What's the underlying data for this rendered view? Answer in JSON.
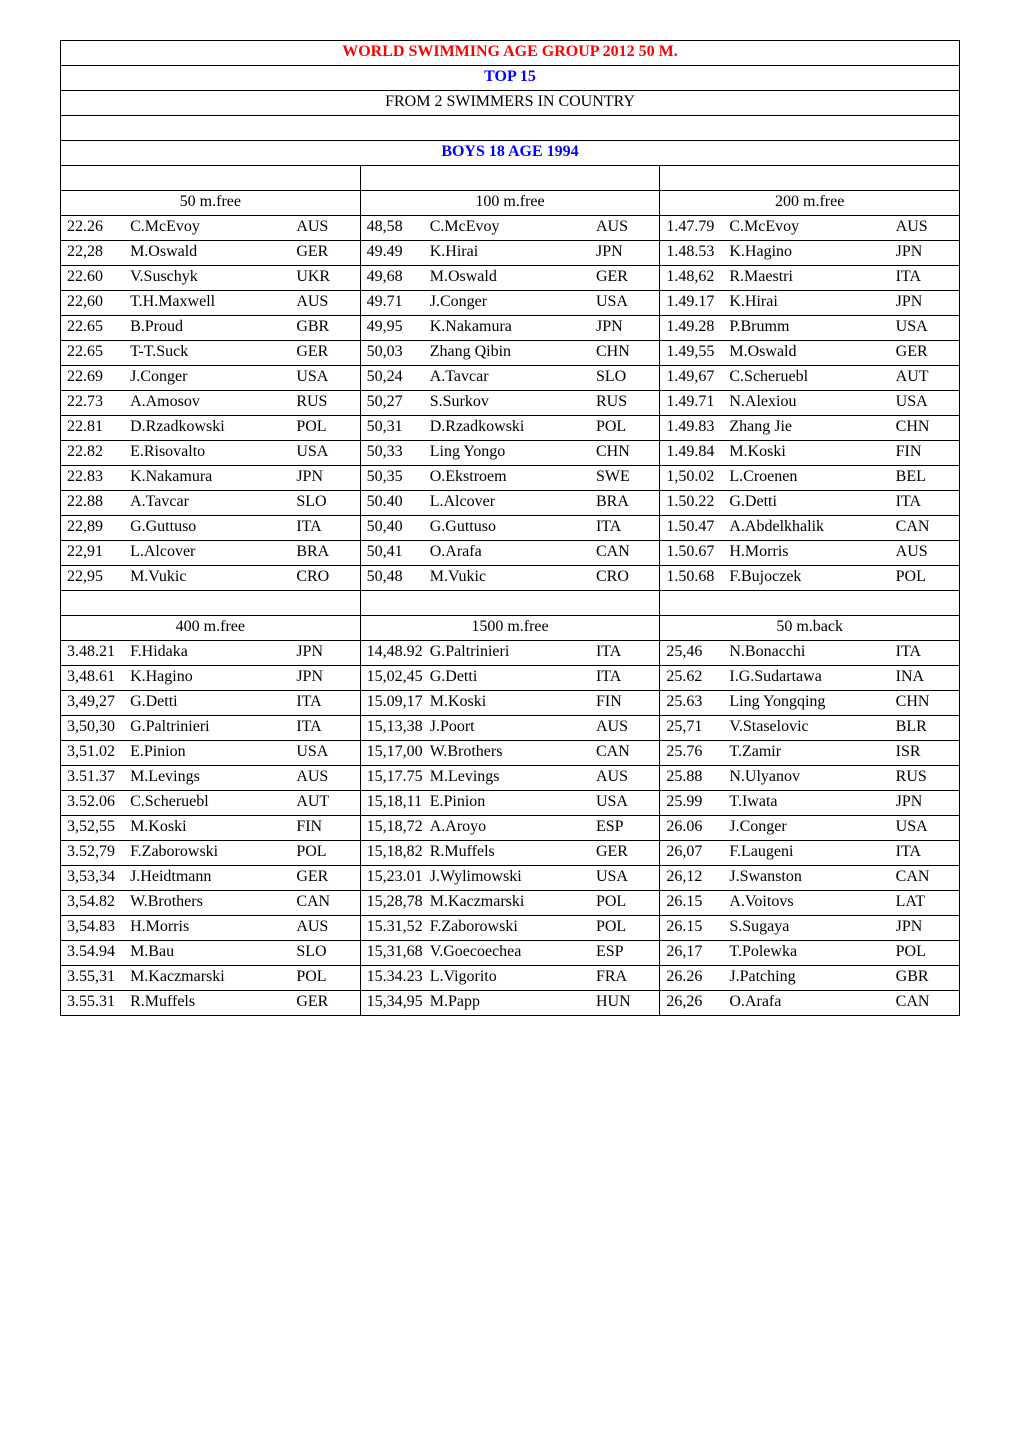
{
  "header": {
    "title": "WORLD SWIMMING AGE GROUP 2012 50 M.",
    "subtitle": "TOP 15",
    "note": "FROM 2 SWIMMERS IN COUNTRY",
    "section": "BOYS 18 AGE 1994"
  },
  "colors": {
    "red": "#ff0000",
    "blue": "#0000ff",
    "black": "#000000",
    "border": "#000000",
    "background": "#ffffff"
  },
  "typography": {
    "family": "Times New Roman",
    "base_size_pt": 12,
    "header_weight": "bold"
  },
  "events": [
    {
      "name": "50 m.free",
      "rows": [
        [
          "22.26",
          "C.McEvoy",
          "AUS"
        ],
        [
          "22,28",
          "M.Oswald",
          "GER"
        ],
        [
          "22.60",
          "V.Suschyk",
          "UKR"
        ],
        [
          "22,60",
          "T.H.Maxwell",
          "AUS"
        ],
        [
          "22.65",
          "B.Proud",
          "GBR"
        ],
        [
          "22.65",
          "T-T.Suck",
          "GER"
        ],
        [
          "22.69",
          "J.Conger",
          "USA"
        ],
        [
          "22.73",
          "A.Amosov",
          "RUS"
        ],
        [
          "22.81",
          "D.Rzadkowski",
          "POL"
        ],
        [
          "22.82",
          "E.Risovalto",
          "USA"
        ],
        [
          "22.83",
          "K.Nakamura",
          "JPN"
        ],
        [
          "22.88",
          "A.Tavcar",
          "SLO"
        ],
        [
          "22,89",
          "G.Guttuso",
          "ITA"
        ],
        [
          "22,91",
          "L.Alcover",
          "BRA"
        ],
        [
          "22,95",
          "M.Vukic",
          "CRO"
        ]
      ]
    },
    {
      "name": "100 m.free",
      "rows": [
        [
          "48,58",
          "C.McEvoy",
          "AUS"
        ],
        [
          "49.49",
          "K.Hirai",
          "JPN"
        ],
        [
          "49,68",
          "M.Oswald",
          "GER"
        ],
        [
          "49.71",
          "J.Conger",
          "USA"
        ],
        [
          "49,95",
          "K.Nakamura",
          "JPN"
        ],
        [
          "50,03",
          "Zhang Qibin",
          "CHN"
        ],
        [
          "50,24",
          "A.Tavcar",
          "SLO"
        ],
        [
          "50,27",
          "S.Surkov",
          "RUS"
        ],
        [
          "50,31",
          "D.Rzadkowski",
          "POL"
        ],
        [
          "50,33",
          "Ling Yongo",
          "CHN"
        ],
        [
          "50,35",
          "O.Ekstroem",
          "SWE"
        ],
        [
          "50.40",
          "L.Alcover",
          "BRA"
        ],
        [
          "50,40",
          "G.Guttuso",
          "ITA"
        ],
        [
          "50,41",
          "O.Arafa",
          "CAN"
        ],
        [
          "50,48",
          "M.Vukic",
          "CRO"
        ]
      ]
    },
    {
      "name": "200 m.free",
      "rows": [
        [
          "1.47.79",
          "C.McEvoy",
          "AUS"
        ],
        [
          "1.48.53",
          "K.Hagino",
          "JPN"
        ],
        [
          "1.48,62",
          "R.Maestri",
          "ITA"
        ],
        [
          "1.49.17",
          "K.Hirai",
          "JPN"
        ],
        [
          "1.49.28",
          "P.Brumm",
          "USA"
        ],
        [
          "1.49,55",
          "M.Oswald",
          "GER"
        ],
        [
          "1.49,67",
          "C.Scheruebl",
          "AUT"
        ],
        [
          "1.49.71",
          "N.Alexiou",
          "USA"
        ],
        [
          "1.49.83",
          "Zhang Jie",
          "CHN"
        ],
        [
          "1.49.84",
          "M.Koski",
          "FIN"
        ],
        [
          "1,50.02",
          "L.Croenen",
          "BEL"
        ],
        [
          "1.50.22",
          "G.Detti",
          "ITA"
        ],
        [
          "1.50.47",
          "A.Abdelkhalik",
          "CAN"
        ],
        [
          "1.50.67",
          "H.Morris",
          "AUS"
        ],
        [
          "1.50.68",
          "F.Bujoczek",
          "POL"
        ]
      ]
    },
    {
      "name": "400 m.free",
      "rows": [
        [
          "3.48.21",
          "F.Hidaka",
          "JPN"
        ],
        [
          "3,48.61",
          "K.Hagino",
          "JPN"
        ],
        [
          "3,49,27",
          "G.Detti",
          "ITA"
        ],
        [
          "3,50,30",
          "G.Paltrinieri",
          "ITA"
        ],
        [
          "3,51.02",
          "E.Pinion",
          "USA"
        ],
        [
          "3.51.37",
          "M.Levings",
          "AUS"
        ],
        [
          "3.52.06",
          "C.Scheruebl",
          "AUT"
        ],
        [
          "3,52,55",
          "M.Koski",
          "FIN"
        ],
        [
          "3.52,79",
          "F.Zaborowski",
          "POL"
        ],
        [
          "3,53,34",
          "J.Heidtmann",
          "GER"
        ],
        [
          "3,54.82",
          "W.Brothers",
          "CAN"
        ],
        [
          "3,54.83",
          "H.Morris",
          "AUS"
        ],
        [
          "3.54.94",
          "M.Bau",
          "SLO"
        ],
        [
          "3.55,31",
          "M.Kaczmarski",
          "POL"
        ],
        [
          "3.55.31",
          "R.Muffels",
          "GER"
        ]
      ]
    },
    {
      "name": "1500 m.free",
      "rows": [
        [
          "14,48.92",
          "G.Paltrinieri",
          "ITA"
        ],
        [
          "15,02,45",
          "G.Detti",
          "ITA"
        ],
        [
          "15.09,17",
          "M.Koski",
          "FIN"
        ],
        [
          "15,13,38",
          "J.Poort",
          "AUS"
        ],
        [
          "15,17,00",
          "W.Brothers",
          "CAN"
        ],
        [
          "15,17.75",
          "M.Levings",
          "AUS"
        ],
        [
          "15,18,11",
          "E.Pinion",
          "USA"
        ],
        [
          "15,18,72",
          "A.Aroyo",
          "ESP"
        ],
        [
          "15,18,82",
          "R.Muffels",
          "GER"
        ],
        [
          "15,23.01",
          "J.Wylimowski",
          "USA"
        ],
        [
          "15,28,78",
          "M.Kaczmarski",
          "POL"
        ],
        [
          "15.31,52",
          "F.Zaborowski",
          "POL"
        ],
        [
          "15,31,68",
          "V.Goecoechea",
          "ESP"
        ],
        [
          "15.34.23",
          "L.Vigorito",
          "FRA"
        ],
        [
          "15,34,95",
          "M.Papp",
          "HUN"
        ]
      ]
    },
    {
      "name": "50 m.back",
      "rows": [
        [
          "25,46",
          "N.Bonacchi",
          "ITA"
        ],
        [
          "25.62",
          "I.G.Sudartawa",
          "INA"
        ],
        [
          "25.63",
          "Ling Yongqing",
          "CHN"
        ],
        [
          "25,71",
          "V.Staselovic",
          "BLR"
        ],
        [
          "25.76",
          "T.Zamir",
          "ISR"
        ],
        [
          "25.88",
          "N.Ulyanov",
          "RUS"
        ],
        [
          "25.99",
          "T.Iwata",
          "JPN"
        ],
        [
          "26.06",
          "J.Conger",
          "USA"
        ],
        [
          "26,07",
          "F.Laugeni",
          "ITA"
        ],
        [
          "26,12",
          "J.Swanston",
          "CAN"
        ],
        [
          "26.15",
          "A.Voitovs",
          "LAT"
        ],
        [
          "26.15",
          "S.Sugaya",
          "JPN"
        ],
        [
          "26,17",
          "T.Polewka",
          "POL"
        ],
        [
          "26.26",
          "J.Patching",
          "GBR"
        ],
        [
          "26,26",
          "O.Arafa",
          "CAN"
        ]
      ]
    }
  ]
}
